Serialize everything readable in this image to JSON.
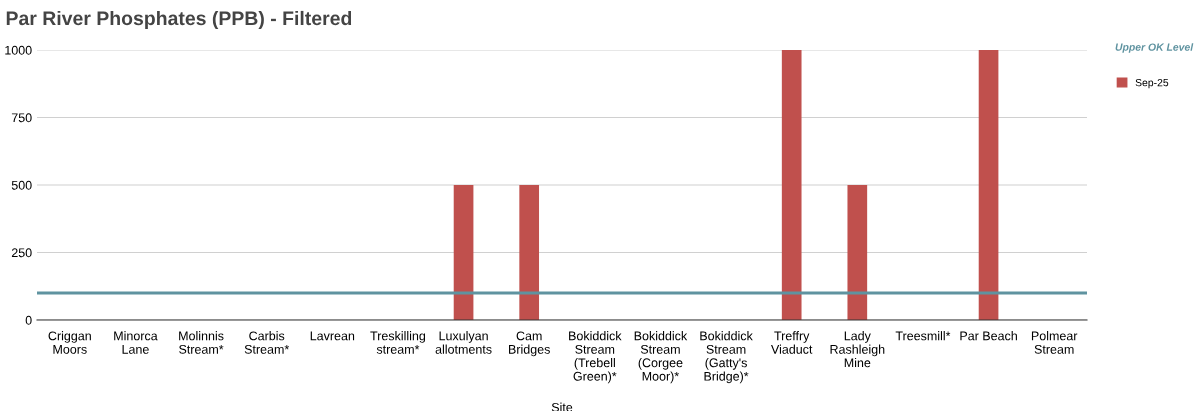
{
  "chart_data": {
    "type": "bar",
    "title": "Par River Phosphates (PPB) - Filtered",
    "xlabel": "Site",
    "categories": [
      "Criggan\nMoors",
      "Minorca\nLane",
      "Molinnis\nStream*",
      "Carbis\nStream*",
      "Lavrean",
      "Treskilling\nstream*",
      "Luxulyan\nallotments",
      "Cam\nBridges",
      "Bokiddick\nStream\n(Trebell\nGreen)*",
      "Bokiddick\nStream\n(Corgee\nMoor)*",
      "Bokiddick\nStream\n(Gatty's\nBridge)*",
      "Treffry\nViaduct",
      "Lady\nRashleigh\nMine",
      "Treesmill*",
      "Par Beach",
      "Polmear\nStream"
    ],
    "series": [
      {
        "name": "Sep-25",
        "color": "#c0504d",
        "values": [
          null,
          null,
          null,
          null,
          null,
          null,
          500,
          500,
          null,
          null,
          null,
          1000,
          500,
          null,
          1000,
          null
        ]
      }
    ],
    "ylim": [
      0,
      1000
    ],
    "yticks": [
      0,
      250,
      500,
      750,
      1000
    ],
    "grid": "y",
    "legend": "right",
    "ref_lines": [
      {
        "axis": "y",
        "value": 100,
        "label": "Upper OK Level",
        "color": "#5f93a0",
        "line_style": "solid"
      }
    ]
  }
}
